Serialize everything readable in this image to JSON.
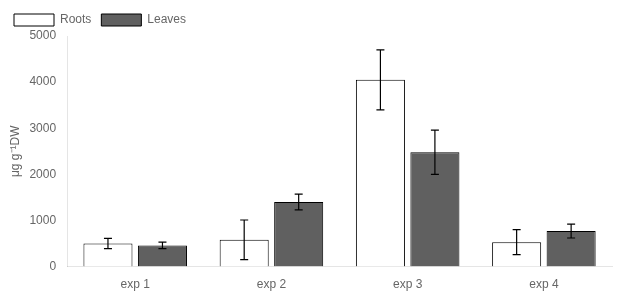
{
  "chart_data": {
    "type": "bar",
    "categories": [
      "exp 1",
      "exp 2",
      "exp 3",
      "exp 4"
    ],
    "series": [
      {
        "name": "Roots",
        "color": "#ffffff",
        "values": [
          500,
          580,
          4050,
          530
        ],
        "errors": [
          110,
          430,
          650,
          270
        ]
      },
      {
        "name": "Leaves",
        "color": "#606060",
        "values": [
          460,
          1400,
          2480,
          770
        ],
        "errors": [
          70,
          170,
          480,
          150
        ]
      }
    ],
    "ylabel": "μg g⁻¹DW",
    "ylim": [
      0,
      5000
    ],
    "yticks": [
      0,
      1000,
      2000,
      3000,
      4000,
      5000
    ],
    "grid": false,
    "legend": "upper left"
  }
}
